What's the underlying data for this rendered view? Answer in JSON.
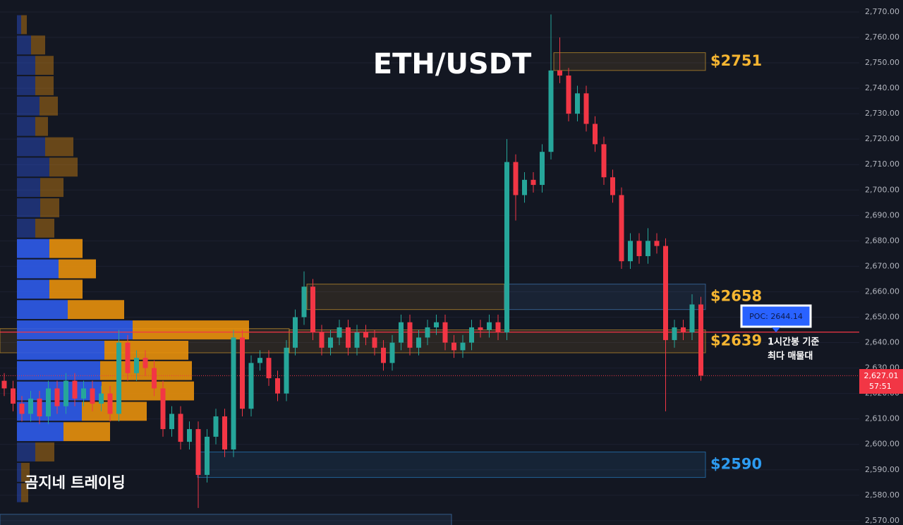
{
  "chart_data": {
    "type": "candlestick",
    "title": "ETH/USDT",
    "watermark": "곰지네 트레이딩",
    "ylim": [
      2568.3,
      2774.7
    ],
    "yticks": [
      {
        "value": 2570,
        "label": "2,570.00"
      },
      {
        "value": 2580,
        "label": "2,580.00"
      },
      {
        "value": 2590,
        "label": "2,590.00"
      },
      {
        "value": 2600,
        "label": "2,600.00"
      },
      {
        "value": 2610,
        "label": "2,610.00"
      },
      {
        "value": 2620,
        "label": "2,620.00"
      },
      {
        "value": 2630,
        "label": "2,630.00"
      },
      {
        "value": 2640,
        "label": "2,640.00"
      },
      {
        "value": 2650,
        "label": "2,650.00"
      },
      {
        "value": 2660,
        "label": "2,660.00"
      },
      {
        "value": 2670,
        "label": "2,670.00"
      },
      {
        "value": 2680,
        "label": "2,680.00"
      },
      {
        "value": 2690,
        "label": "2,690.00"
      },
      {
        "value": 2700,
        "label": "2,700.00"
      },
      {
        "value": 2710,
        "label": "2,710.00"
      },
      {
        "value": 2720,
        "label": "2,720.00"
      },
      {
        "value": 2730,
        "label": "2,730.00"
      },
      {
        "value": 2740,
        "label": "2,740.00"
      },
      {
        "value": 2750,
        "label": "2,750.00"
      },
      {
        "value": 2760,
        "label": "2,760.00"
      },
      {
        "value": 2770,
        "label": "2,770.00"
      }
    ],
    "up_color": "#26a69a",
    "down_color": "#f23645",
    "open": [
      2625,
      2622,
      2616,
      2612,
      2618,
      2611,
      2622,
      2615,
      2625,
      2618,
      2622,
      2616,
      2620,
      2612,
      2640,
      2628,
      2634,
      2630,
      2622,
      2606,
      2612,
      2601,
      2606,
      2588,
      2603,
      2611,
      2598,
      2642,
      2614,
      2632,
      2634,
      2626,
      2620,
      2638,
      2650,
      2662,
      2644,
      2638,
      2642,
      2646,
      2638,
      2644,
      2642,
      2638,
      2632,
      2640,
      2648,
      2638,
      2642,
      2646,
      2648,
      2640,
      2637,
      2640,
      2646,
      2645,
      2648,
      2644,
      2711,
      2698,
      2704,
      2702,
      2715,
      2747,
      2745,
      2730,
      2738,
      2726,
      2718,
      2705,
      2698,
      2672,
      2680,
      2674,
      2680,
      2678,
      2641,
      2646,
      2644,
      2655
    ],
    "high": [
      2628,
      2625,
      2619,
      2621,
      2621,
      2625,
      2625,
      2628,
      2628,
      2625,
      2625,
      2623,
      2623,
      2645,
      2643,
      2637,
      2637,
      2633,
      2625,
      2615,
      2615,
      2609,
      2609,
      2606,
      2614,
      2614,
      2645,
      2645,
      2635,
      2637,
      2637,
      2629,
      2641,
      2653,
      2668,
      2665,
      2647,
      2645,
      2649,
      2649,
      2647,
      2647,
      2645,
      2641,
      2643,
      2651,
      2651,
      2645,
      2649,
      2651,
      2651,
      2643,
      2643,
      2649,
      2649,
      2651,
      2651,
      2720,
      2714,
      2707,
      2707,
      2718,
      2769,
      2760,
      2748,
      2741,
      2741,
      2729,
      2721,
      2708,
      2701,
      2683,
      2683,
      2685,
      2683,
      2681,
      2649,
      2649,
      2659,
      2658
    ],
    "low": [
      2619,
      2613,
      2609,
      2609,
      2608,
      2608,
      2612,
      2612,
      2615,
      2615,
      2613,
      2613,
      2609,
      2609,
      2625,
      2625,
      2627,
      2619,
      2603,
      2603,
      2598,
      2598,
      2575,
      2585,
      2600,
      2595,
      2595,
      2611,
      2611,
      2629,
      2623,
      2617,
      2617,
      2635,
      2647,
      2641,
      2635,
      2635,
      2639,
      2635,
      2635,
      2639,
      2635,
      2629,
      2629,
      2637,
      2635,
      2635,
      2639,
      2643,
      2637,
      2634,
      2634,
      2637,
      2642,
      2642,
      2641,
      2641,
      2688,
      2695,
      2699,
      2699,
      2712,
      2742,
      2727,
      2727,
      2723,
      2715,
      2702,
      2695,
      2669,
      2669,
      2671,
      2671,
      2675,
      2613,
      2638,
      2641,
      2641,
      2625
    ],
    "close": [
      2622,
      2616,
      2612,
      2618,
      2611,
      2622,
      2615,
      2625,
      2618,
      2622,
      2616,
      2620,
      2612,
      2640,
      2628,
      2634,
      2630,
      2622,
      2606,
      2612,
      2601,
      2606,
      2588,
      2603,
      2611,
      2598,
      2642,
      2614,
      2632,
      2634,
      2626,
      2620,
      2638,
      2650,
      2662,
      2644,
      2638,
      2642,
      2646,
      2638,
      2644,
      2642,
      2638,
      2632,
      2640,
      2648,
      2638,
      2642,
      2646,
      2648,
      2640,
      2637,
      2640,
      2646,
      2645,
      2648,
      2644,
      2711,
      2698,
      2704,
      2702,
      2715,
      2747,
      2745,
      2730,
      2738,
      2726,
      2718,
      2705,
      2698,
      2672,
      2680,
      2674,
      2680,
      2678,
      2641,
      2646,
      2644,
      2655,
      2627.01
    ],
    "last_price": {
      "value": 2627.01,
      "label": "2,627.01"
    },
    "countdown": "57:51",
    "poc": {
      "value": 2644.14,
      "label": "POC: 2644.14"
    },
    "poc_note": [
      "1시간봉 기준",
      "최다 매물대"
    ],
    "zones": [
      {
        "top": 2754,
        "bottom": 2747,
        "label": "$2751",
        "color": "#f5b531"
      },
      {
        "top": 2663,
        "bottom": 2653,
        "label": "$2658",
        "color": "#f5b531"
      },
      {
        "top": 2663,
        "bottom": 2653,
        "color": "#4a90d9"
      },
      {
        "top": 2645.5,
        "bottom": 2636,
        "color": "#f5b531"
      },
      {
        "top": 2645,
        "bottom": 2636,
        "label": "$2639",
        "color": "#f5b531"
      },
      {
        "top": 2597,
        "bottom": 2587,
        "label": "$2590",
        "color": "#2d9bf0"
      },
      {
        "top": 2572.5,
        "bottom": 2566,
        "color": "#4a90d9"
      }
    ],
    "profile": {
      "bins": [
        2765,
        2757,
        2749,
        2741,
        2733,
        2725,
        2717,
        2709,
        2701,
        2693,
        2685,
        2677,
        2669,
        2661,
        2653,
        2645,
        2637,
        2629,
        2621,
        2613,
        2605,
        2597,
        2589,
        2581
      ],
      "buy": [
        6,
        20,
        26,
        26,
        32,
        26,
        40,
        46,
        33,
        33,
        26,
        46,
        59,
        46,
        72,
        164,
        124,
        118,
        120,
        92,
        66,
        26,
        6,
        6
      ],
      "sell": [
        8,
        20,
        26,
        26,
        26,
        18,
        40,
        40,
        33,
        27,
        27,
        47,
        53,
        47,
        80,
        165,
        119,
        130,
        131,
        92,
        66,
        27,
        12,
        10
      ],
      "buy_color": "#2f5bea",
      "sell_color": "#e8900c",
      "value_area": [
        2601,
        2681
      ]
    }
  }
}
